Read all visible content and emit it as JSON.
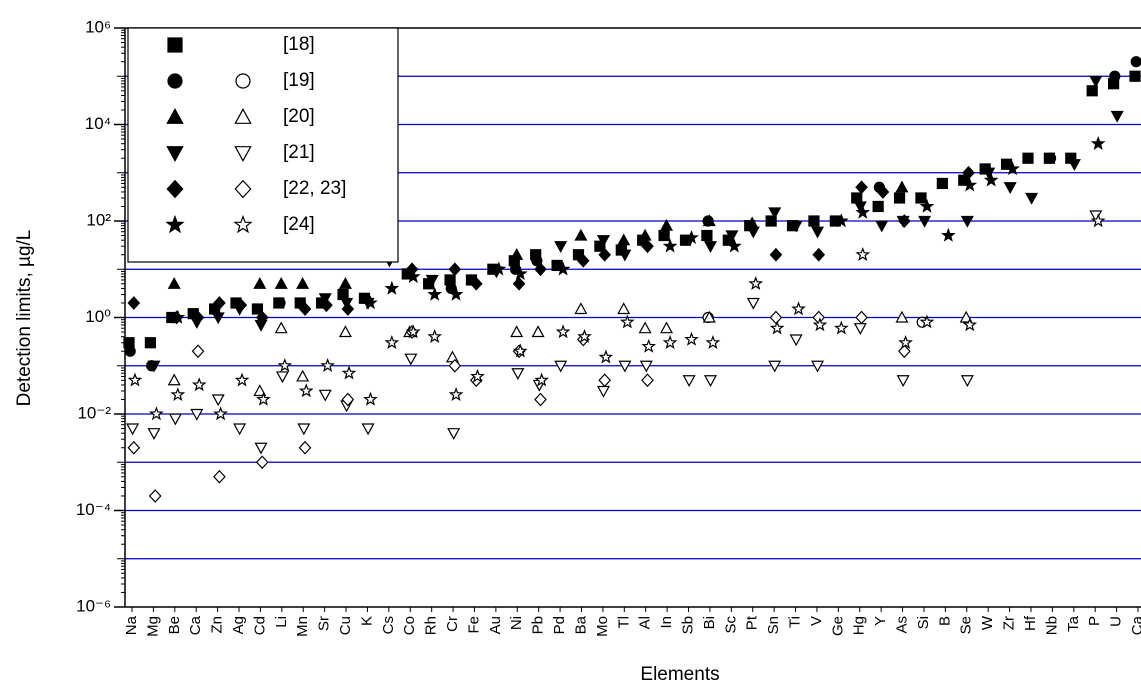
{
  "chart_data": {
    "type": "scatter",
    "y_label": "Detection limits, µg/L",
    "x_label": "Elements",
    "log_y": true,
    "grid": true,
    "grid_color": "#0000cc",
    "legend": "upper left",
    "ylim": [
      1e-06,
      1000000
    ],
    "yticks": [
      {
        "value": 1e-06,
        "label": "10⁻⁶"
      },
      {
        "value": 0.0001,
        "label": "10⁻⁴"
      },
      {
        "value": 0.01,
        "label": "10⁻²"
      },
      {
        "value": 1,
        "label": "10⁰"
      },
      {
        "value": 100,
        "label": "10²"
      },
      {
        "value": 10000,
        "label": "10⁴"
      },
      {
        "value": 1000000,
        "label": "10⁶"
      }
    ],
    "categories": [
      "Na",
      "Mg",
      "Be",
      "Ca",
      "Zn",
      "Ag",
      "Cd",
      "Li",
      "Mn",
      "Sr",
      "Cu",
      "K",
      "Cs",
      "Co",
      "Rh",
      "Cr",
      "Fe",
      "Au",
      "Ni",
      "Pb",
      "Pd",
      "Ba",
      "Mo",
      "Tl",
      "Al",
      "In",
      "Sb",
      "Bi",
      "Sc",
      "Pt",
      "Sn",
      "Ti",
      "V",
      "Ge",
      "Hg",
      "Y",
      "As",
      "Si",
      "B",
      "Se",
      "W",
      "Zr",
      "Hf",
      "Nb",
      "Ta",
      "P",
      "U",
      "Ca"
    ],
    "series": [
      {
        "name": "[18]",
        "marker": "square",
        "color": "#000000",
        "values": [
          0.3,
          0.3,
          1,
          1.2,
          1.5,
          2,
          1.5,
          2,
          2,
          2,
          3,
          2.5,
          null,
          8,
          5,
          6,
          6,
          10,
          15,
          20,
          12,
          20,
          30,
          25,
          40,
          50,
          40,
          50,
          40,
          80,
          100,
          80,
          100,
          100,
          300,
          200,
          300,
          300,
          600,
          700,
          1200,
          1500,
          2000,
          2000,
          2000,
          50000,
          70000,
          100000
        ]
      },
      {
        "name": "[19]",
        "marker": "circle",
        "color": "#000000",
        "values": [
          0.2,
          0.1,
          null,
          null,
          null,
          null,
          null,
          2,
          null,
          null,
          null,
          null,
          null,
          null,
          null,
          4,
          null,
          null,
          10,
          15,
          null,
          null,
          null,
          null,
          null,
          null,
          40,
          100,
          null,
          null,
          null,
          null,
          null,
          null,
          null,
          500,
          null,
          null,
          null,
          null,
          null,
          null,
          null,
          2000,
          null,
          null,
          100000,
          200000
        ],
        "open_values": [
          null,
          null,
          null,
          null,
          null,
          null,
          null,
          null,
          null,
          null,
          null,
          null,
          null,
          null,
          null,
          null,
          null,
          null,
          null,
          null,
          null,
          null,
          null,
          null,
          null,
          null,
          null,
          1,
          null,
          null,
          null,
          null,
          null,
          null,
          null,
          null,
          null,
          0.8,
          null,
          null,
          null,
          null,
          null,
          null,
          null,
          null,
          null,
          null
        ]
      },
      {
        "name": "[20]",
        "marker": "triangle",
        "color": "#000000",
        "values": [
          null,
          null,
          5,
          null,
          null,
          null,
          5,
          5,
          5,
          null,
          5,
          null,
          null,
          null,
          null,
          null,
          null,
          null,
          20,
          null,
          null,
          50,
          null,
          40,
          50,
          80,
          null,
          100,
          null,
          90,
          null,
          null,
          null,
          null,
          null,
          null,
          500,
          null,
          null,
          null,
          null,
          null,
          null,
          null,
          null,
          null,
          null,
          null
        ],
        "open_values": [
          null,
          null,
          0.05,
          null,
          null,
          null,
          0.03,
          0.6,
          0.06,
          null,
          0.5,
          null,
          null,
          0.5,
          null,
          0.15,
          null,
          null,
          0.5,
          0.5,
          null,
          1.5,
          null,
          1.5,
          0.6,
          0.6,
          null,
          1,
          null,
          null,
          null,
          null,
          null,
          null,
          null,
          null,
          1,
          null,
          null,
          1,
          null,
          null,
          null,
          null,
          null,
          null,
          null,
          null
        ]
      },
      {
        "name": "[21]",
        "marker": "down",
        "color": "#000000",
        "values": [
          null,
          0.1,
          null,
          0.8,
          1,
          1.5,
          0.7,
          null,
          null,
          2.5,
          2,
          2,
          15,
          null,
          6,
          null,
          null,
          9,
          null,
          null,
          30,
          null,
          40,
          20,
          null,
          null,
          null,
          30,
          50,
          60,
          150,
          80,
          60,
          null,
          200,
          80,
          100,
          100,
          null,
          100,
          1000,
          500,
          300,
          null,
          1500,
          80000,
          15000,
          null
        ],
        "open_values": [
          0.005,
          0.004,
          0.008,
          0.01,
          0.02,
          0.005,
          0.002,
          0.06,
          0.005,
          0.025,
          0.015,
          0.005,
          null,
          0.14,
          null,
          0.004,
          null,
          null,
          0.07,
          0.04,
          0.1,
          null,
          0.03,
          0.1,
          0.1,
          null,
          0.05,
          0.05,
          null,
          2,
          0.1,
          0.35,
          0.1,
          null,
          0.6,
          null,
          0.05,
          null,
          null,
          0.05,
          null,
          null,
          null,
          null,
          null,
          130,
          null,
          null
        ]
      },
      {
        "name": "[22, 23]",
        "marker": "diamond",
        "color": "#000000",
        "values": [
          2,
          null,
          1,
          1,
          2,
          1.8,
          1,
          null,
          1.5,
          1.8,
          1.5,
          null,
          null,
          10,
          null,
          10,
          5,
          null,
          5,
          10,
          null,
          15,
          20,
          null,
          30,
          null,
          null,
          null,
          null,
          null,
          20,
          null,
          20,
          null,
          500,
          400,
          100,
          null,
          null,
          1000,
          null,
          null,
          null,
          null,
          null,
          null,
          null,
          null
        ],
        "open_values": [
          0.002,
          0.0002,
          null,
          0.2,
          0.0005,
          null,
          0.001,
          null,
          0.002,
          null,
          0.02,
          null,
          null,
          0.5,
          null,
          0.1,
          0.05,
          null,
          0.2,
          0.02,
          null,
          0.35,
          0.05,
          null,
          0.05,
          null,
          null,
          null,
          null,
          null,
          1,
          null,
          1,
          null,
          1,
          null,
          0.2,
          null,
          null,
          null,
          null,
          null,
          null,
          null,
          null,
          null,
          null,
          null
        ]
      },
      {
        "name": "[24]",
        "marker": "star",
        "color": "#000000",
        "values": [
          null,
          null,
          1,
          null,
          null,
          null,
          null,
          null,
          null,
          null,
          null,
          2,
          4,
          7,
          3,
          3,
          null,
          10,
          8,
          null,
          10,
          null,
          null,
          null,
          null,
          30,
          45,
          null,
          30,
          null,
          null,
          null,
          null,
          100,
          150,
          null,
          null,
          200,
          50,
          550,
          700,
          1200,
          null,
          null,
          null,
          4000,
          null,
          null
        ],
        "open_values": [
          0.05,
          0.01,
          0.025,
          0.04,
          0.01,
          0.05,
          0.02,
          0.1,
          0.03,
          0.1,
          0.07,
          0.02,
          0.3,
          0.5,
          0.4,
          0.025,
          0.06,
          null,
          0.2,
          0.05,
          0.5,
          0.4,
          0.15,
          0.8,
          0.25,
          0.3,
          0.35,
          0.3,
          null,
          5,
          0.6,
          1.5,
          0.7,
          0.6,
          20,
          null,
          0.3,
          0.8,
          null,
          0.7,
          null,
          null,
          null,
          null,
          null,
          100,
          null,
          null
        ]
      }
    ]
  }
}
